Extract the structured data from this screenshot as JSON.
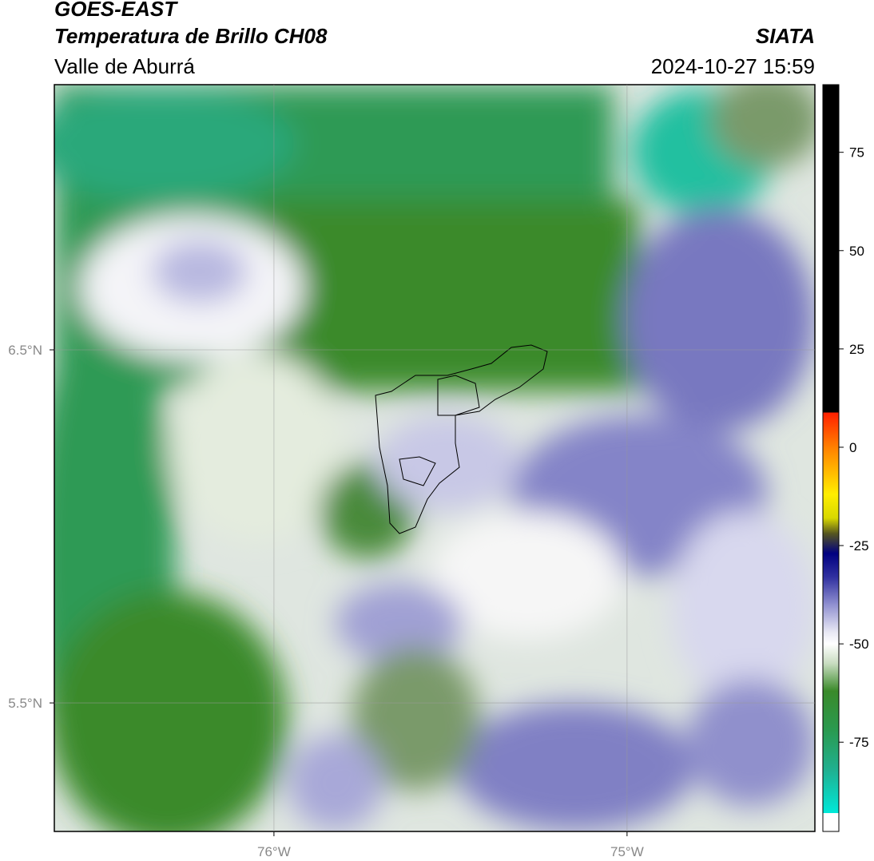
{
  "header": {
    "title": "GOES-EAST",
    "subtitle": "Temperatura de Brillo CH08",
    "region": "Valle de Aburrá",
    "source": "SIATA",
    "datetime": "2024-10-27 15:59"
  },
  "map": {
    "xlim": [
      -76.622,
      -74.468
    ],
    "ylim": [
      5.136,
      7.251
    ],
    "xticks": [
      {
        "value": -76,
        "label": "76°W"
      },
      {
        "value": -75,
        "label": "75°W"
      }
    ],
    "yticks": [
      {
        "value": 6.5,
        "label": "6.5°N"
      },
      {
        "value": 5.5,
        "label": "5.5°N"
      }
    ],
    "grid": true
  },
  "colorbar": {
    "lim": [
      -97.7,
      92.2
    ],
    "ticks": [
      75,
      50,
      25,
      0,
      -25,
      -50,
      -75
    ],
    "stops": [
      {
        "value": 92.2,
        "color": "#000000"
      },
      {
        "value": 8.8,
        "color": "#000000"
      },
      {
        "value": 8.8,
        "color": "#ff2000"
      },
      {
        "value": 0,
        "color": "#ff8000"
      },
      {
        "value": -12,
        "color": "#ffee00"
      },
      {
        "value": -18,
        "color": "#d8d800"
      },
      {
        "value": -22,
        "color": "#555520"
      },
      {
        "value": -27,
        "color": "#000080"
      },
      {
        "value": -33,
        "color": "#3030a0"
      },
      {
        "value": -40,
        "color": "#9090d0"
      },
      {
        "value": -47,
        "color": "#e8e8f4"
      },
      {
        "value": -50,
        "color": "#ffffff"
      },
      {
        "value": -55,
        "color": "#c8dcc0"
      },
      {
        "value": -62,
        "color": "#3a8a2a"
      },
      {
        "value": -72,
        "color": "#2a9a50"
      },
      {
        "value": -82,
        "color": "#20b090"
      },
      {
        "value": -93,
        "color": "#00e8d8"
      },
      {
        "value": -93,
        "color": "#ffffff"
      },
      {
        "value": -97.7,
        "color": "#ffffff"
      }
    ]
  }
}
